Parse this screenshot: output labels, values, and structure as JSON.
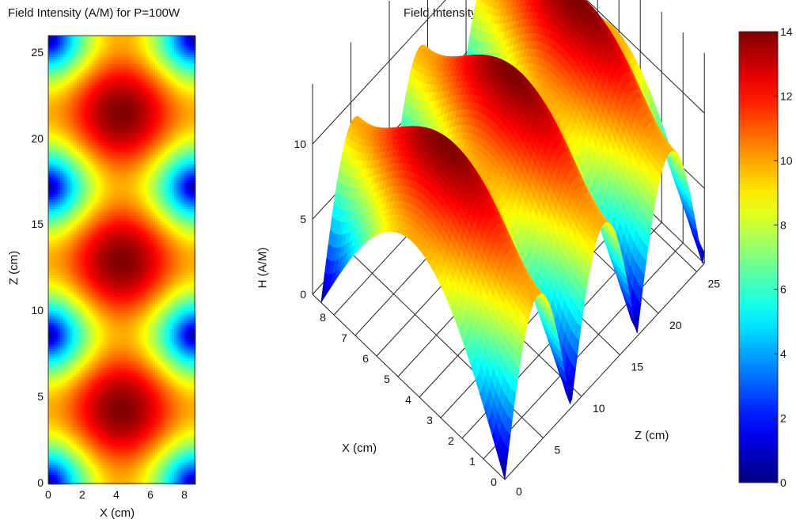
{
  "chart_data": [
    {
      "type": "heatmap",
      "title": "Field Intensity (A/M) for P=100W",
      "xlabel": "X (cm)",
      "ylabel": "Z (cm)",
      "xlim": [
        0,
        8.6
      ],
      "ylim": [
        0,
        26
      ],
      "x_ticks": [
        "0",
        "2",
        "4",
        "6",
        "8"
      ],
      "y_ticks": [
        "0",
        "5",
        "10",
        "15",
        "20",
        "25"
      ],
      "field": {
        "unit": "A/M",
        "min": 0,
        "max": 14,
        "x_period_cm": 8.6,
        "z_period_cm": 8.6
      }
    },
    {
      "type": "surface",
      "title": "Field Intensity (A/M) for P=100W",
      "xlabel": "X (cm)",
      "ylabel": "Z (cm)",
      "zlabel": "H (A/M)",
      "x_ticks": [
        "0",
        "1",
        "2",
        "3",
        "4",
        "5",
        "6",
        "7",
        "8"
      ],
      "y_ticks": [
        "0",
        "5",
        "10",
        "15",
        "20",
        "25"
      ],
      "z_ticks": [
        "0",
        "5",
        "10"
      ],
      "zlim": [
        0,
        14
      ]
    },
    {
      "type": "colorbar",
      "ticks": [
        "0",
        "2",
        "4",
        "6",
        "8",
        "10",
        "12",
        "14"
      ],
      "range": [
        0,
        14
      ],
      "colormap": "jet"
    }
  ]
}
